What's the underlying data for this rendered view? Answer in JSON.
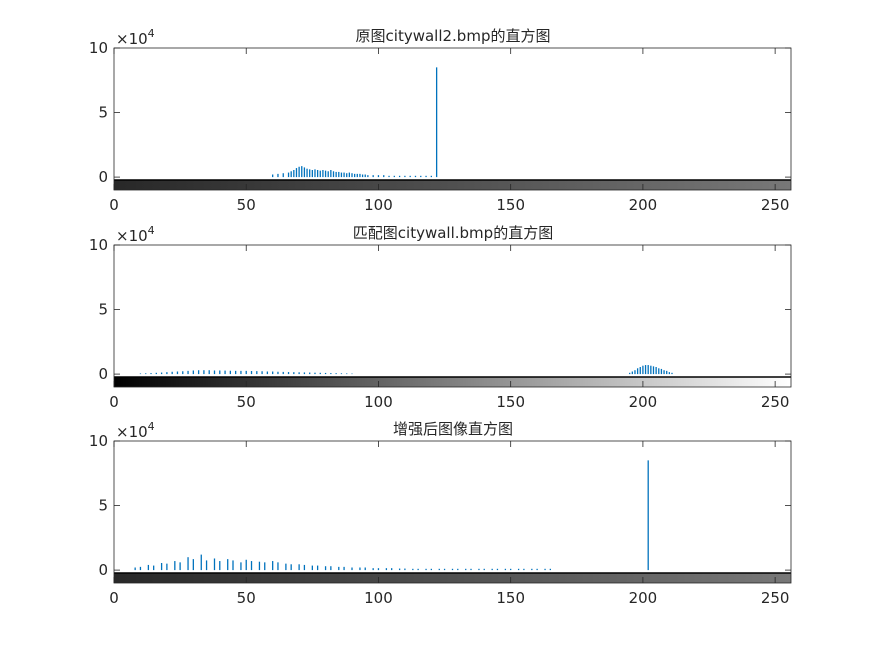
{
  "figure": {
    "background": "#ffffff",
    "bar_color": "#0072bd",
    "axis_color": "#262626"
  },
  "chart_data": [
    {
      "type": "bar",
      "title": "原图citywall2.bmp的直方图",
      "xlabel": "",
      "ylabel": "",
      "xlim": [
        0,
        256
      ],
      "ylim": [
        -1.0,
        10
      ],
      "xticks": [
        "0",
        "50",
        "100",
        "150",
        "200",
        "250"
      ],
      "yticks": [
        "0",
        "5",
        "10"
      ],
      "y_exponent": "×10",
      "y_exponent_power": "4",
      "colorbar": {
        "from_level": 40,
        "to_level": 120
      },
      "series": [
        {
          "x": [
            60,
            62,
            64,
            66,
            67,
            68,
            69,
            70,
            71,
            72,
            73,
            74,
            75,
            76,
            77,
            78,
            79,
            80,
            81,
            82,
            83,
            84,
            85,
            86,
            87,
            88,
            89,
            90,
            91,
            92,
            93,
            94,
            95,
            96,
            98,
            100,
            102,
            104,
            106,
            108,
            110,
            112,
            114,
            116,
            118,
            120,
            122
          ],
          "values": [
            0.2,
            0.25,
            0.3,
            0.35,
            0.45,
            0.55,
            0.7,
            0.8,
            0.85,
            0.75,
            0.65,
            0.6,
            0.55,
            0.6,
            0.55,
            0.5,
            0.55,
            0.5,
            0.45,
            0.55,
            0.45,
            0.4,
            0.4,
            0.35,
            0.35,
            0.3,
            0.35,
            0.3,
            0.25,
            0.25,
            0.25,
            0.2,
            0.2,
            0.15,
            0.15,
            0.15,
            0.15,
            0.1,
            0.1,
            0.1,
            0.1,
            0.1,
            0.1,
            0.1,
            0.1,
            0.1,
            8.5
          ]
        }
      ]
    },
    {
      "type": "bar",
      "title": "匹配图citywall.bmp的直方图",
      "xlabel": "",
      "ylabel": "",
      "xlim": [
        0,
        256
      ],
      "ylim": [
        -1.0,
        10
      ],
      "xticks": [
        "0",
        "50",
        "100",
        "150",
        "200",
        "250"
      ],
      "yticks": [
        "0",
        "5",
        "10"
      ],
      "y_exponent": "×10",
      "y_exponent_power": "4",
      "colorbar": {
        "from_level": 0,
        "to_level": 255
      },
      "series": [
        {
          "x": [
            10,
            12,
            14,
            16,
            18,
            20,
            22,
            24,
            26,
            28,
            30,
            32,
            34,
            36,
            38,
            40,
            42,
            44,
            46,
            48,
            50,
            52,
            54,
            56,
            58,
            60,
            62,
            64,
            66,
            68,
            70,
            72,
            74,
            76,
            78,
            80,
            82,
            84,
            86,
            88,
            90,
            195,
            196,
            197,
            198,
            199,
            200,
            201,
            202,
            203,
            204,
            205,
            206,
            207,
            208,
            209,
            210,
            211
          ],
          "values": [
            0.05,
            0.06,
            0.08,
            0.1,
            0.12,
            0.15,
            0.18,
            0.2,
            0.22,
            0.25,
            0.28,
            0.3,
            0.3,
            0.3,
            0.28,
            0.28,
            0.27,
            0.26,
            0.25,
            0.25,
            0.25,
            0.24,
            0.23,
            0.22,
            0.2,
            0.2,
            0.18,
            0.17,
            0.16,
            0.15,
            0.14,
            0.13,
            0.12,
            0.11,
            0.1,
            0.09,
            0.08,
            0.07,
            0.06,
            0.05,
            0.04,
            0.1,
            0.2,
            0.3,
            0.45,
            0.55,
            0.65,
            0.7,
            0.7,
            0.65,
            0.6,
            0.55,
            0.45,
            0.4,
            0.3,
            0.25,
            0.15,
            0.1
          ]
        }
      ]
    },
    {
      "type": "bar",
      "title": "增强后图像直方图",
      "xlabel": "",
      "ylabel": "",
      "xlim": [
        0,
        256
      ],
      "ylim": [
        -1.0,
        10
      ],
      "xticks": [
        "0",
        "50",
        "100",
        "150",
        "200",
        "250"
      ],
      "yticks": [
        "0",
        "5",
        "10"
      ],
      "y_exponent": "×10",
      "y_exponent_power": "4",
      "colorbar": {
        "from_level": 40,
        "to_level": 120
      },
      "series": [
        {
          "x": [
            8,
            10,
            13,
            15,
            18,
            20,
            23,
            25,
            28,
            30,
            33,
            35,
            38,
            40,
            43,
            45,
            48,
            50,
            52,
            55,
            57,
            60,
            62,
            65,
            67,
            70,
            72,
            75,
            77,
            80,
            82,
            85,
            87,
            90,
            93,
            95,
            98,
            100,
            103,
            105,
            108,
            110,
            113,
            115,
            118,
            120,
            123,
            125,
            128,
            130,
            133,
            135,
            138,
            140,
            143,
            145,
            148,
            150,
            153,
            155,
            158,
            160,
            163,
            165,
            202
          ],
          "values": [
            0.2,
            0.25,
            0.4,
            0.35,
            0.55,
            0.5,
            0.7,
            0.6,
            1.0,
            0.85,
            1.2,
            0.75,
            0.9,
            0.7,
            0.85,
            0.75,
            0.6,
            0.8,
            0.7,
            0.65,
            0.6,
            0.7,
            0.6,
            0.5,
            0.45,
            0.45,
            0.4,
            0.35,
            0.35,
            0.3,
            0.3,
            0.25,
            0.25,
            0.2,
            0.2,
            0.2,
            0.15,
            0.15,
            0.15,
            0.15,
            0.12,
            0.12,
            0.1,
            0.1,
            0.1,
            0.1,
            0.1,
            0.1,
            0.1,
            0.1,
            0.1,
            0.1,
            0.1,
            0.1,
            0.1,
            0.1,
            0.1,
            0.1,
            0.1,
            0.1,
            0.1,
            0.1,
            0.1,
            0.1,
            8.5
          ]
        }
      ]
    }
  ]
}
